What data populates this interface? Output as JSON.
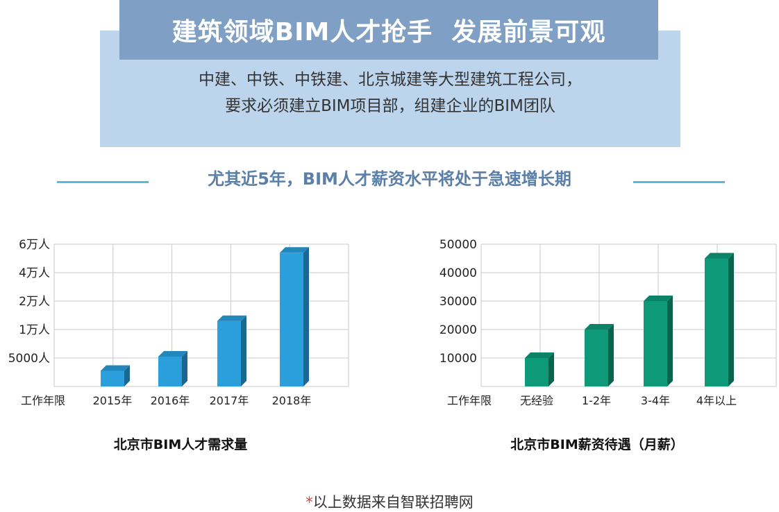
{
  "header": {
    "title": "建筑领域BIM人才抢手  发展前景可观",
    "description_lines": [
      "中建、中铁、中铁建、北京城建等大型建筑工程公司，",
      "要求必须建立BIM项目部，组建企业的BIM团队"
    ]
  },
  "subheading": "尤其近5年，BIM人才薪资水平将处于急速增长期",
  "colors": {
    "title_bar": "#7fa0c4",
    "info_box": "#bcd5ed",
    "subheading_text": "#5a7fa9",
    "subheading_rule": "#54bcd9",
    "demand_bar": "#2a9fdc",
    "salary_bar": "#0e9a78"
  },
  "chart_data": [
    {
      "type": "bar",
      "title": "北京市BIM人才需求量",
      "x_axis_label": "工作年限",
      "categories": [
        "2015年",
        "2016年",
        "2017年",
        "2018年"
      ],
      "y_tick_labels": [
        "5000人",
        "1万人",
        "2万人",
        "4万人",
        "6万人"
      ],
      "values_on_tick_scale": [
        0.55,
        1.05,
        2.3,
        4.7
      ],
      "grid": true,
      "style": "3d-bars"
    },
    {
      "type": "bar",
      "title": "北京市BIM薪资待遇（月薪）",
      "x_axis_label": "工作年限",
      "categories": [
        "无经验",
        "1-2年",
        "3-4年",
        "4年以上"
      ],
      "values": [
        10000,
        20000,
        30000,
        45000
      ],
      "y_ticks": [
        10000,
        20000,
        30000,
        40000,
        50000
      ],
      "ylim": [
        0,
        50000
      ],
      "grid": true,
      "style": "3d-bars"
    }
  ],
  "footnote": {
    "marker": "*",
    "text": "以上数据来自智联招聘网"
  }
}
